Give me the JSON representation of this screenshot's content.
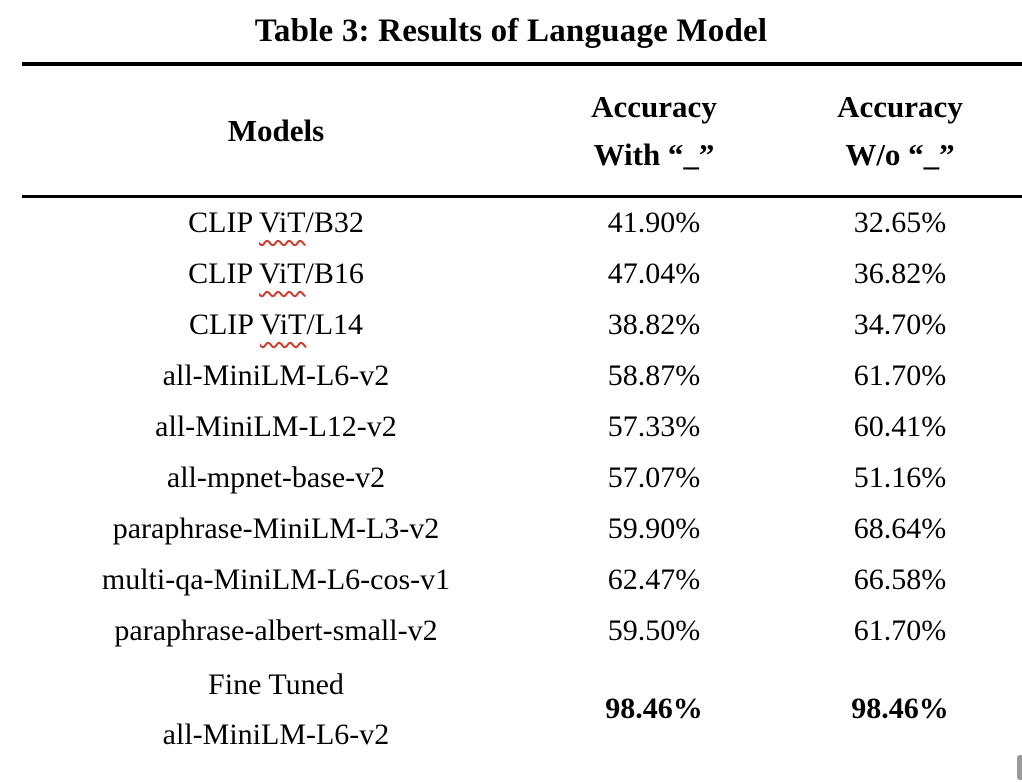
{
  "table": {
    "title": "Table 3: Results of Language Model",
    "headers": {
      "models": "Models",
      "acc_with": {
        "line1": "Accuracy",
        "line2": "With “_”"
      },
      "acc_without": {
        "line1": "Accuracy",
        "line2": "W/o “_”"
      }
    },
    "rows": [
      {
        "model_prefix": "CLIP ",
        "model_misspelled": "ViT",
        "model_suffix": "/B32",
        "acc_with": "41.90%",
        "acc_without": "32.65%"
      },
      {
        "model_prefix": "CLIP ",
        "model_misspelled": "ViT",
        "model_suffix": "/B16",
        "acc_with": "47.04%",
        "acc_without": "36.82%"
      },
      {
        "model_prefix": "CLIP ",
        "model_misspelled": "ViT",
        "model_suffix": "/L14",
        "acc_with": "38.82%",
        "acc_without": "34.70%"
      },
      {
        "model_prefix": "all-MiniLM-L6-v2",
        "model_misspelled": "",
        "model_suffix": "",
        "acc_with": "58.87%",
        "acc_without": "61.70%"
      },
      {
        "model_prefix": "all-MiniLM-L12-v2",
        "model_misspelled": "",
        "model_suffix": "",
        "acc_with": "57.33%",
        "acc_without": "60.41%"
      },
      {
        "model_prefix": "all-mpnet-base-v2",
        "model_misspelled": "",
        "model_suffix": "",
        "acc_with": "57.07%",
        "acc_without": "51.16%"
      },
      {
        "model_prefix": "paraphrase-MiniLM-L3-v2",
        "model_misspelled": "",
        "model_suffix": "",
        "acc_with": "59.90%",
        "acc_without": "68.64%"
      },
      {
        "model_prefix": "multi-qa-MiniLM-L6-cos-v1",
        "model_misspelled": "",
        "model_suffix": "",
        "acc_with": "62.47%",
        "acc_without": "66.58%"
      },
      {
        "model_prefix": "paraphrase-albert-small-v2",
        "model_misspelled": "",
        "model_suffix": "",
        "acc_with": "59.50%",
        "acc_without": "61.70%"
      }
    ],
    "final_row": {
      "model_line1": "Fine Tuned",
      "model_line2": "all-MiniLM-L6-v2",
      "acc_with": "98.46%",
      "acc_without": "98.46%"
    },
    "colors": {
      "spellcheck_red": "#cd3a2a",
      "text": "#000000"
    }
  }
}
